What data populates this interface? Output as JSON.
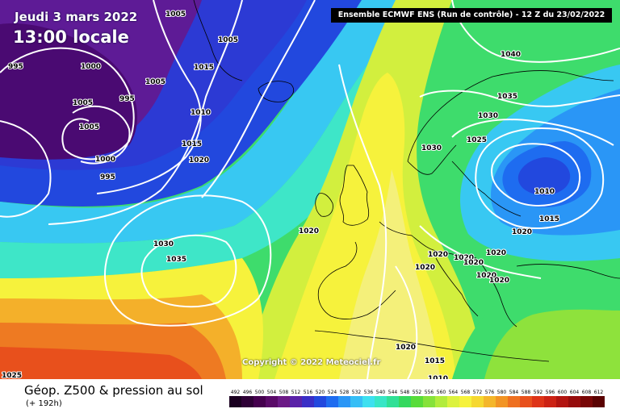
{
  "header": {
    "date": "Jeudi 3 mars 2022",
    "local_time": "13:00 locale",
    "run_info": "Ensemble ECMWF ENS  (Run de contrôle)  -  12 Z du 23/02/2022"
  },
  "copyright": "Copyright © 2022 Meteociel.fr",
  "footer": {
    "title": "Géop. Z500 & pression au sol",
    "lead": "(+ 192h)"
  },
  "legend": {
    "ticks": [
      "492",
      "496",
      "500",
      "504",
      "508",
      "512",
      "516",
      "520",
      "524",
      "528",
      "532",
      "536",
      "540",
      "544",
      "548",
      "552",
      "556",
      "560",
      "564",
      "568",
      "572",
      "576",
      "580",
      "584",
      "588",
      "592",
      "596",
      "600",
      "604",
      "608",
      "612"
    ],
    "colors": [
      "#1a0020",
      "#2e0036",
      "#45004e",
      "#5a0a68",
      "#6c1a86",
      "#5a22a8",
      "#3a2ec6",
      "#2248de",
      "#1e6cf0",
      "#2a96f6",
      "#36bef6",
      "#3ee0f0",
      "#38e6c6",
      "#30e096",
      "#34d85e",
      "#58dc3a",
      "#86e23a",
      "#b2ec3c",
      "#dcf23e",
      "#f6f23c",
      "#f6d830",
      "#f4b62a",
      "#f29424",
      "#ee7020",
      "#e8501c",
      "#de3418",
      "#cc2214",
      "#b21410",
      "#960c0c",
      "#780606",
      "#5a0202"
    ]
  },
  "map": {
    "colors": {
      "deep_low": "#4a0a72",
      "low": "#5e1b96",
      "trough": "#2c3ad4",
      "blue": "#1e6cf0",
      "cyan": "#38c8f2",
      "aqua": "#3ee6c8",
      "green": "#3edc6c",
      "light_green": "#8ee23c",
      "yellow_green": "#d2ef3e",
      "yellow": "#f6f23c",
      "pale_yellow": "#f4f07a",
      "orange": "#f4b02a",
      "dark_orange": "#ee7a22",
      "red_orange": "#e8501c",
      "land_line": "#000000",
      "isobar": "#ffffff"
    },
    "isobar_labels": [
      "995",
      "1005",
      "1005",
      "1000",
      "995",
      "1005",
      "1005",
      "1000",
      "995",
      "1005",
      "1015",
      "1010",
      "1015",
      "1020",
      "1040",
      "1035",
      "1030",
      "1025",
      "1030",
      "1010",
      "1015",
      "1020",
      "1020",
      "1020",
      "1020",
      "1020",
      "1020",
      "1020",
      "1020",
      "1030",
      "1035",
      "1020",
      "1015",
      "1010",
      "1025",
      "1020"
    ]
  }
}
